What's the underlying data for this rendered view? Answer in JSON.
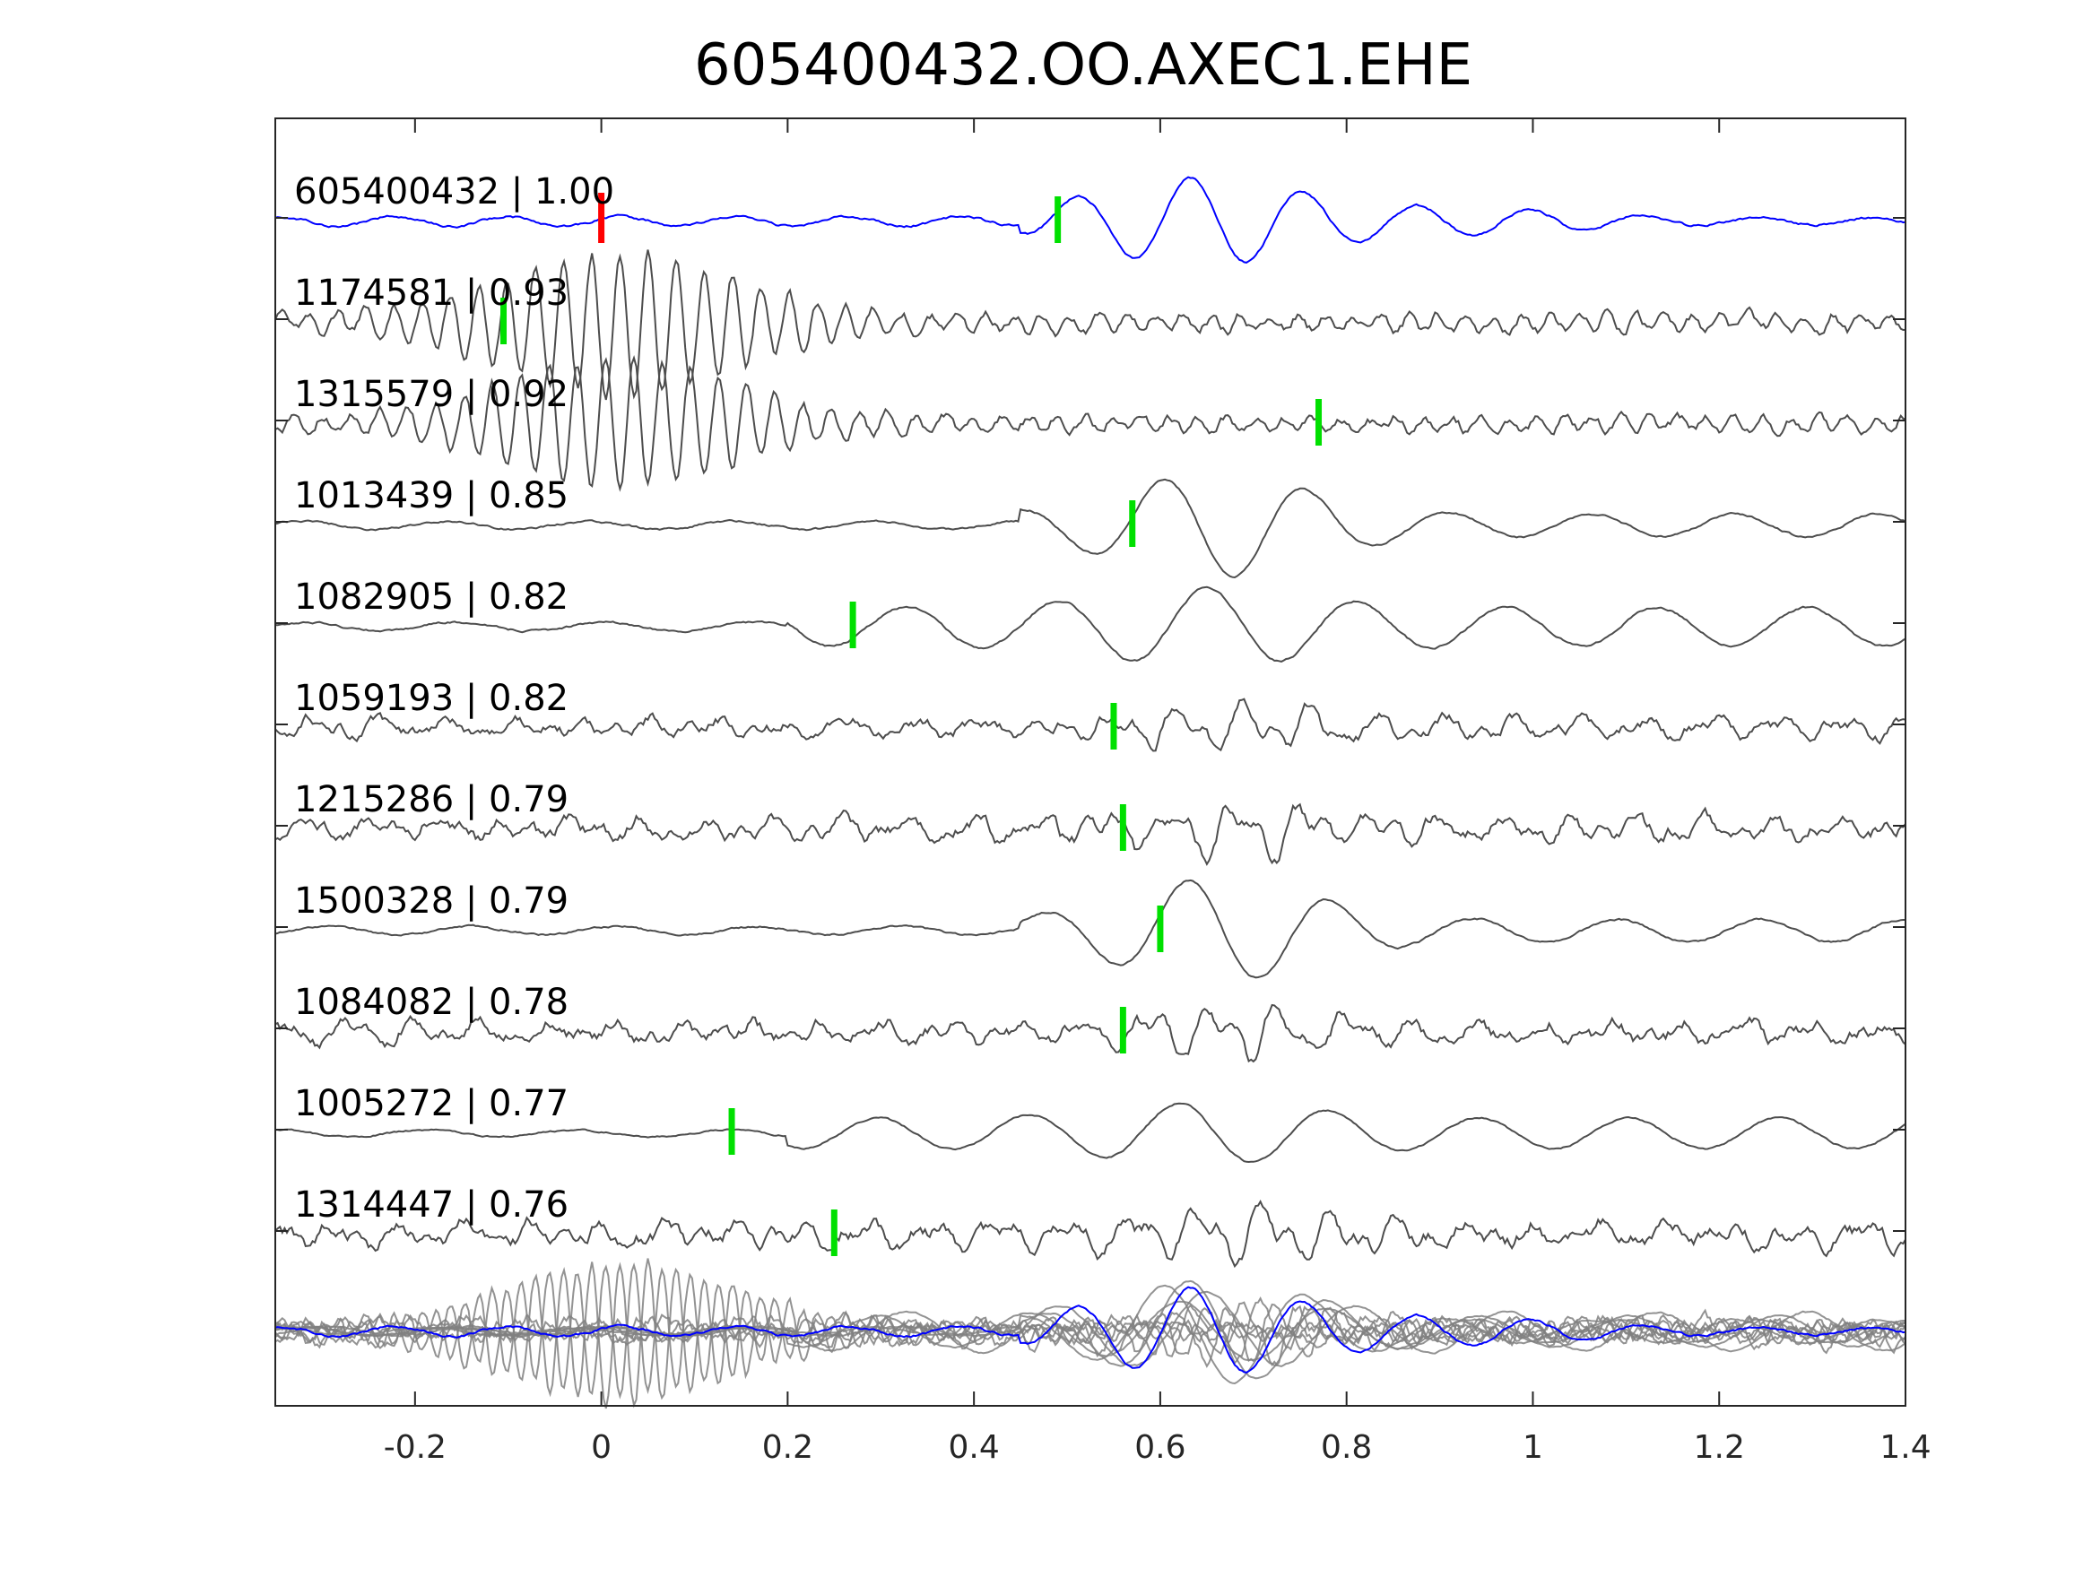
{
  "chart_data": {
    "type": "line",
    "title": "605400432.OO.AXEC1.EHE",
    "xlabel": "",
    "ylabel": "",
    "xlim": [
      -0.35,
      1.4
    ],
    "x_ticks": [
      -0.2,
      0,
      0.2,
      0.4,
      0.6,
      0.8,
      1,
      1.2,
      1.4
    ],
    "x_tick_labels": [
      "-0.2",
      "0",
      "0.2",
      "0.4",
      "0.6",
      "0.8",
      "1",
      "1.2",
      "1.4"
    ],
    "grid": false,
    "colors": {
      "reference_trace": "#0000ff",
      "match_trace": "#4d4d4d",
      "stack_trace": "#808080",
      "reference_pick": "#ff0000",
      "match_pick": "#00e000",
      "axes": "#262626"
    },
    "traces": [
      {
        "label": "605400432 | 1.00",
        "id": "605400432",
        "cc": 1.0,
        "pick": 0.49,
        "ref_pick": 0.0,
        "reference": true
      },
      {
        "label": "1174581 | 0.93",
        "id": "1174581",
        "cc": 0.93,
        "pick": -0.105
      },
      {
        "label": "1315579 | 0.92",
        "id": "1315579",
        "cc": 0.92,
        "pick": 0.77
      },
      {
        "label": "1013439 | 0.85",
        "id": "1013439",
        "cc": 0.85,
        "pick": 0.57
      },
      {
        "label": "1082905 | 0.82",
        "id": "1082905",
        "cc": 0.82,
        "pick": 0.27
      },
      {
        "label": "1059193 | 0.82",
        "id": "1059193",
        "cc": 0.82,
        "pick": 0.55
      },
      {
        "label": "1215286 | 0.79",
        "id": "1215286",
        "cc": 0.79,
        "pick": 0.56
      },
      {
        "label": "1500328 | 0.79",
        "id": "1500328",
        "cc": 0.79,
        "pick": 0.6
      },
      {
        "label": "1084082 | 0.78",
        "id": "1084082",
        "cc": 0.78,
        "pick": 0.56
      },
      {
        "label": "1005272 | 0.77",
        "id": "1005272",
        "cc": 0.77,
        "pick": 0.14
      },
      {
        "label": "1314447 | 0.76",
        "id": "1314447",
        "cc": 0.76,
        "pick": 0.25
      }
    ],
    "stacked_overlay": true
  }
}
